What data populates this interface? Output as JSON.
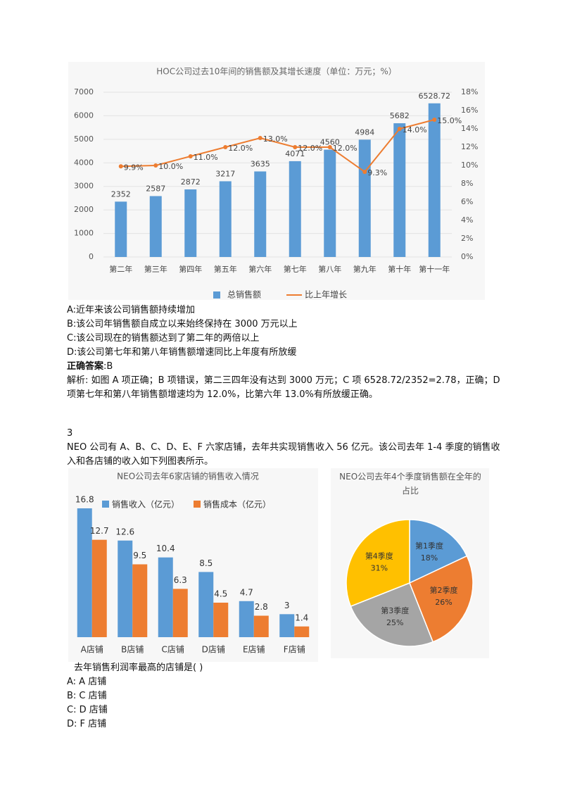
{
  "chart_data": [
    {
      "type": "bar",
      "title": "HOC公司过去10年间的销售额及其增长速度（单位：万元；%）",
      "categories": [
        "第二年",
        "第三年",
        "第四年",
        "第五年",
        "第六年",
        "第七年",
        "第八年",
        "第九年",
        "第十年",
        "第十一年"
      ],
      "series": [
        {
          "name": "总销售额",
          "type": "bar",
          "color": "#5b9bd5",
          "values": [
            2352,
            2587,
            2872,
            3217,
            3635,
            4071,
            4560,
            4984,
            5682,
            6528.72
          ]
        },
        {
          "name": "比上年增长",
          "type": "line",
          "axis": "y2",
          "color": "#ed7d31",
          "values": [
            9.9,
            10.0,
            11.0,
            12.0,
            13.0,
            12.0,
            12.0,
            9.3,
            14.0,
            15.0
          ],
          "value_labels": [
            "9.9%",
            "10.0%",
            "11.0%",
            "12.0%",
            "13.0%",
            "12.0%",
            "12.0%",
            "9.3%",
            "14.0%",
            "15.0%"
          ]
        }
      ],
      "ylim": [
        0,
        7000
      ],
      "yticks": [
        0,
        1000,
        2000,
        3000,
        4000,
        5000,
        6000,
        7000
      ],
      "y2lim": [
        0,
        18
      ],
      "y2ticks": [
        {
          "value": 0,
          "label": "0%"
        },
        {
          "value": 2,
          "label": "2%"
        },
        {
          "value": 4,
          "label": "4%"
        },
        {
          "value": 6,
          "label": "6%"
        },
        {
          "value": 8,
          "label": "8%"
        },
        {
          "value": 10,
          "label": "10%"
        },
        {
          "value": 12,
          "label": "12%"
        },
        {
          "value": 14,
          "label": "14%"
        },
        {
          "value": 16,
          "label": "16%"
        },
        {
          "value": 18,
          "label": "18%"
        }
      ],
      "legend": "bottom"
    },
    {
      "type": "bar",
      "title": "NEO公司去年6家店铺的销售收入情况",
      "categories": [
        "A店铺",
        "B店铺",
        "C店铺",
        "D店铺",
        "E店铺",
        "F店铺"
      ],
      "series": [
        {
          "name": "销售收入（亿元）",
          "color": "#5b9bd5",
          "values": [
            16.8,
            12.6,
            10.4,
            8.5,
            4.7,
            3
          ]
        },
        {
          "name": "销售成本（亿元）",
          "color": "#ed7d31",
          "values": [
            12.7,
            9.5,
            6.3,
            4.5,
            2.8,
            1.4
          ]
        }
      ],
      "legend": "top"
    },
    {
      "type": "pie",
      "title": "NEO公司去年4个季度销售额在全年的占比",
      "categories": [
        "第1季度",
        "第2季度",
        "第3季度",
        "第4季度"
      ],
      "values": [
        18,
        26,
        25,
        31
      ],
      "value_labels": [
        "18%",
        "26%",
        "25%",
        "31%"
      ],
      "colors": [
        "#5b9bd5",
        "#ed7d31",
        "#a5a5a5",
        "#ffc000"
      ]
    }
  ],
  "question2": {
    "options": [
      "A:近年来该公司销售额持续增加",
      "B:该公司年销售额自成立以来始终保持在 3000 万元以上",
      "C:该公司现在的销售额达到了第二年的两倍以上",
      "D:该公司第七年和第八年销售额增速同比上年度有所放缓"
    ],
    "answer_label": "正确答案",
    "answer": ":B",
    "analysis": "解析: 如图 A 项正确；B 项错误，第二三四年没有达到 3000 万元；C 项 6528.72/2352=2.78，正确；D 项第七年和第八年销售额增速均为 12.0%，比第六年 13.0%有所放缓正确。"
  },
  "question3": {
    "number": "3",
    "stem": "NEO 公司有 A、B、C、D、E、F 六家店铺，去年共实现销售收入 56 亿元。该公司去年 1-4 季度的销售收入和各店铺的收入如下列图表所示。",
    "question": "去年销售利润率最高的店铺是( )",
    "options": [
      "A: A 店铺",
      "B: C 店铺",
      "C: D 店铺",
      "D: F 店铺"
    ]
  }
}
